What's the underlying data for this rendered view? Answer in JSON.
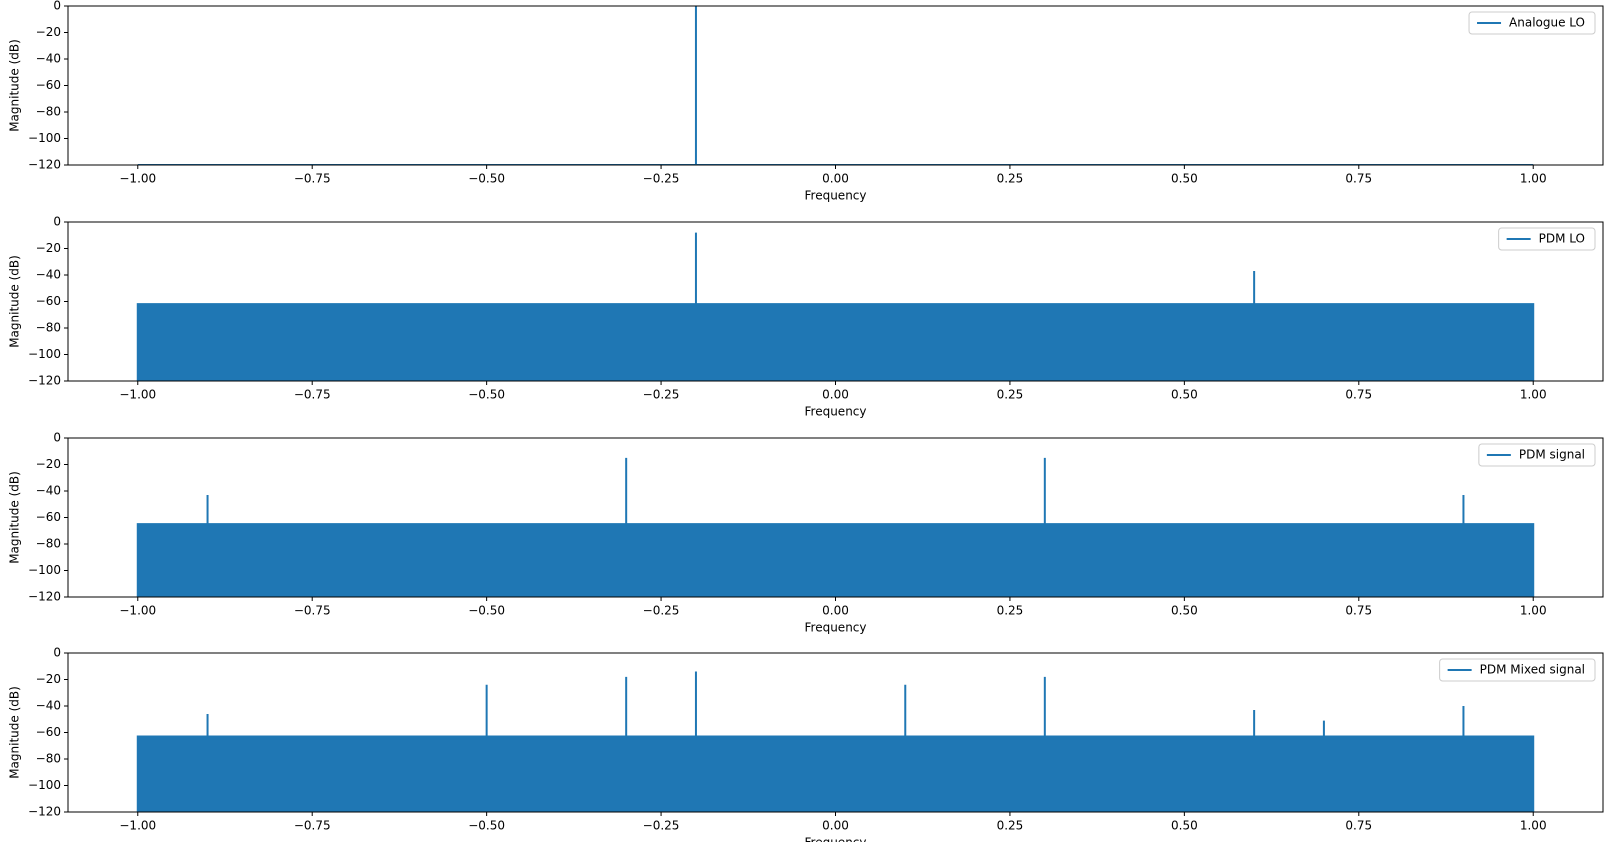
{
  "chart_data": [
    {
      "type": "line",
      "xlabel": "Frequency",
      "ylabel": "Magnitude (dB)",
      "legend": "upper right",
      "xlim": [
        -1.1,
        1.1
      ],
      "ylim": [
        -120,
        0
      ],
      "xticks": [
        {
          "value": -1,
          "label": "−1.00"
        },
        {
          "value": -0.75,
          "label": "−0.75"
        },
        {
          "value": -0.5,
          "label": "−0.50"
        },
        {
          "value": -0.25,
          "label": "−0.25"
        },
        {
          "value": 0,
          "label": "0.00"
        },
        {
          "value": 0.25,
          "label": "0.25"
        },
        {
          "value": 0.5,
          "label": "0.50"
        },
        {
          "value": 0.75,
          "label": "0.75"
        },
        {
          "value": 1,
          "label": "1.00"
        }
      ],
      "yticks": [
        0,
        {
          "value": -20,
          "label": "−20"
        },
        {
          "value": -40,
          "label": "−40"
        },
        {
          "value": -60,
          "label": "−60"
        },
        {
          "value": -80,
          "label": "−80"
        },
        {
          "value": -100,
          "label": "−100"
        },
        {
          "value": -120,
          "label": "−120"
        }
      ],
      "series": [
        {
          "name": "Analogue LO",
          "color": "#1f77b4",
          "x": [
            -1,
            -0.2,
            -0.2,
            -0.2,
            1
          ],
          "values": [
            -120,
            -120,
            0,
            -120,
            -120
          ]
        }
      ]
    },
    {
      "type": "area",
      "xlabel": "Frequency",
      "ylabel": "Magnitude (dB)",
      "legend": "upper right",
      "xlim": [
        -1.1,
        1.1
      ],
      "ylim": [
        -120,
        0
      ],
      "xticks": [
        {
          "value": -1,
          "label": "−1.00"
        },
        {
          "value": -0.75,
          "label": "−0.75"
        },
        {
          "value": -0.5,
          "label": "−0.50"
        },
        {
          "value": -0.25,
          "label": "−0.25"
        },
        {
          "value": 0,
          "label": "0.00"
        },
        {
          "value": 0.25,
          "label": "0.25"
        },
        {
          "value": 0.5,
          "label": "0.50"
        },
        {
          "value": 0.75,
          "label": "0.75"
        },
        {
          "value": 1,
          "label": "1.00"
        }
      ],
      "yticks": [
        0,
        {
          "value": -20,
          "label": "−20"
        },
        {
          "value": -40,
          "label": "−40"
        },
        {
          "value": -60,
          "label": "−60"
        },
        {
          "value": -80,
          "label": "−80"
        },
        {
          "value": -100,
          "label": "−100"
        },
        {
          "value": -120,
          "label": "−120"
        }
      ],
      "series": [
        {
          "name": "PDM LO",
          "color": "#1f77b4",
          "x": [
            -1,
            -1,
            -0.2,
            -0.2,
            -0.2,
            0.6,
            0.6,
            0.6,
            1,
            1
          ],
          "values": [
            -120,
            -62,
            -62,
            -8,
            -62,
            -62,
            -37,
            -62,
            -62,
            -120
          ]
        }
      ]
    },
    {
      "type": "area",
      "xlabel": "Frequency",
      "ylabel": "Magnitude (dB)",
      "legend": "upper right",
      "xlim": [
        -1.1,
        1.1
      ],
      "ylim": [
        -120,
        0
      ],
      "xticks": [
        {
          "value": -1,
          "label": "−1.00"
        },
        {
          "value": -0.75,
          "label": "−0.75"
        },
        {
          "value": -0.5,
          "label": "−0.50"
        },
        {
          "value": -0.25,
          "label": "−0.25"
        },
        {
          "value": 0,
          "label": "0.00"
        },
        {
          "value": 0.25,
          "label": "0.25"
        },
        {
          "value": 0.5,
          "label": "0.50"
        },
        {
          "value": 0.75,
          "label": "0.75"
        },
        {
          "value": 1,
          "label": "1.00"
        }
      ],
      "yticks": [
        0,
        {
          "value": -20,
          "label": "−20"
        },
        {
          "value": -40,
          "label": "−40"
        },
        {
          "value": -60,
          "label": "−60"
        },
        {
          "value": -80,
          "label": "−80"
        },
        {
          "value": -100,
          "label": "−100"
        },
        {
          "value": -120,
          "label": "−120"
        }
      ],
      "series": [
        {
          "name": "PDM signal",
          "color": "#1f77b4",
          "x": [
            -1,
            -1,
            -0.9,
            -0.9,
            -0.9,
            -0.3,
            -0.3,
            -0.3,
            0.3,
            0.3,
            0.3,
            0.9,
            0.9,
            0.9,
            1,
            1
          ],
          "values": [
            -120,
            -65,
            -65,
            -43,
            -65,
            -65,
            -15,
            -65,
            -65,
            -15,
            -65,
            -65,
            -43,
            -65,
            -65,
            -120
          ]
        }
      ]
    },
    {
      "type": "area",
      "xlabel": "Frequency",
      "ylabel": "Magnitude (dB)",
      "legend": "upper right",
      "xlim": [
        -1.1,
        1.1
      ],
      "ylim": [
        -120,
        0
      ],
      "xticks": [
        {
          "value": -1,
          "label": "−1.00"
        },
        {
          "value": -0.75,
          "label": "−0.75"
        },
        {
          "value": -0.5,
          "label": "−0.50"
        },
        {
          "value": -0.25,
          "label": "−0.25"
        },
        {
          "value": 0,
          "label": "0.00"
        },
        {
          "value": 0.25,
          "label": "0.25"
        },
        {
          "value": 0.5,
          "label": "0.50"
        },
        {
          "value": 0.75,
          "label": "0.75"
        },
        {
          "value": 1,
          "label": "1.00"
        }
      ],
      "yticks": [
        0,
        {
          "value": -20,
          "label": "−20"
        },
        {
          "value": -40,
          "label": "−40"
        },
        {
          "value": -60,
          "label": "−60"
        },
        {
          "value": -80,
          "label": "−80"
        },
        {
          "value": -100,
          "label": "−100"
        },
        {
          "value": -120,
          "label": "−120"
        }
      ],
      "series": [
        {
          "name": "PDM Mixed signal",
          "color": "#1f77b4",
          "x": [
            -1,
            -1,
            -0.9,
            -0.9,
            -0.9,
            -0.5,
            -0.5,
            -0.5,
            -0.3,
            -0.3,
            -0.3,
            -0.2,
            -0.2,
            -0.2,
            0.1,
            0.1,
            0.1,
            0.3,
            0.3,
            0.3,
            0.6,
            0.6,
            0.6,
            0.7,
            0.7,
            0.7,
            0.9,
            0.9,
            0.9,
            1,
            1
          ],
          "values": [
            -120,
            -63,
            -63,
            -46,
            -63,
            -63,
            -24,
            -63,
            -63,
            -18,
            -63,
            -63,
            -14,
            -63,
            -63,
            -24,
            -63,
            -63,
            -18,
            -63,
            -63,
            -43,
            -63,
            -63,
            -51,
            -63,
            -63,
            -40,
            -63,
            -63,
            -120
          ]
        }
      ]
    }
  ]
}
